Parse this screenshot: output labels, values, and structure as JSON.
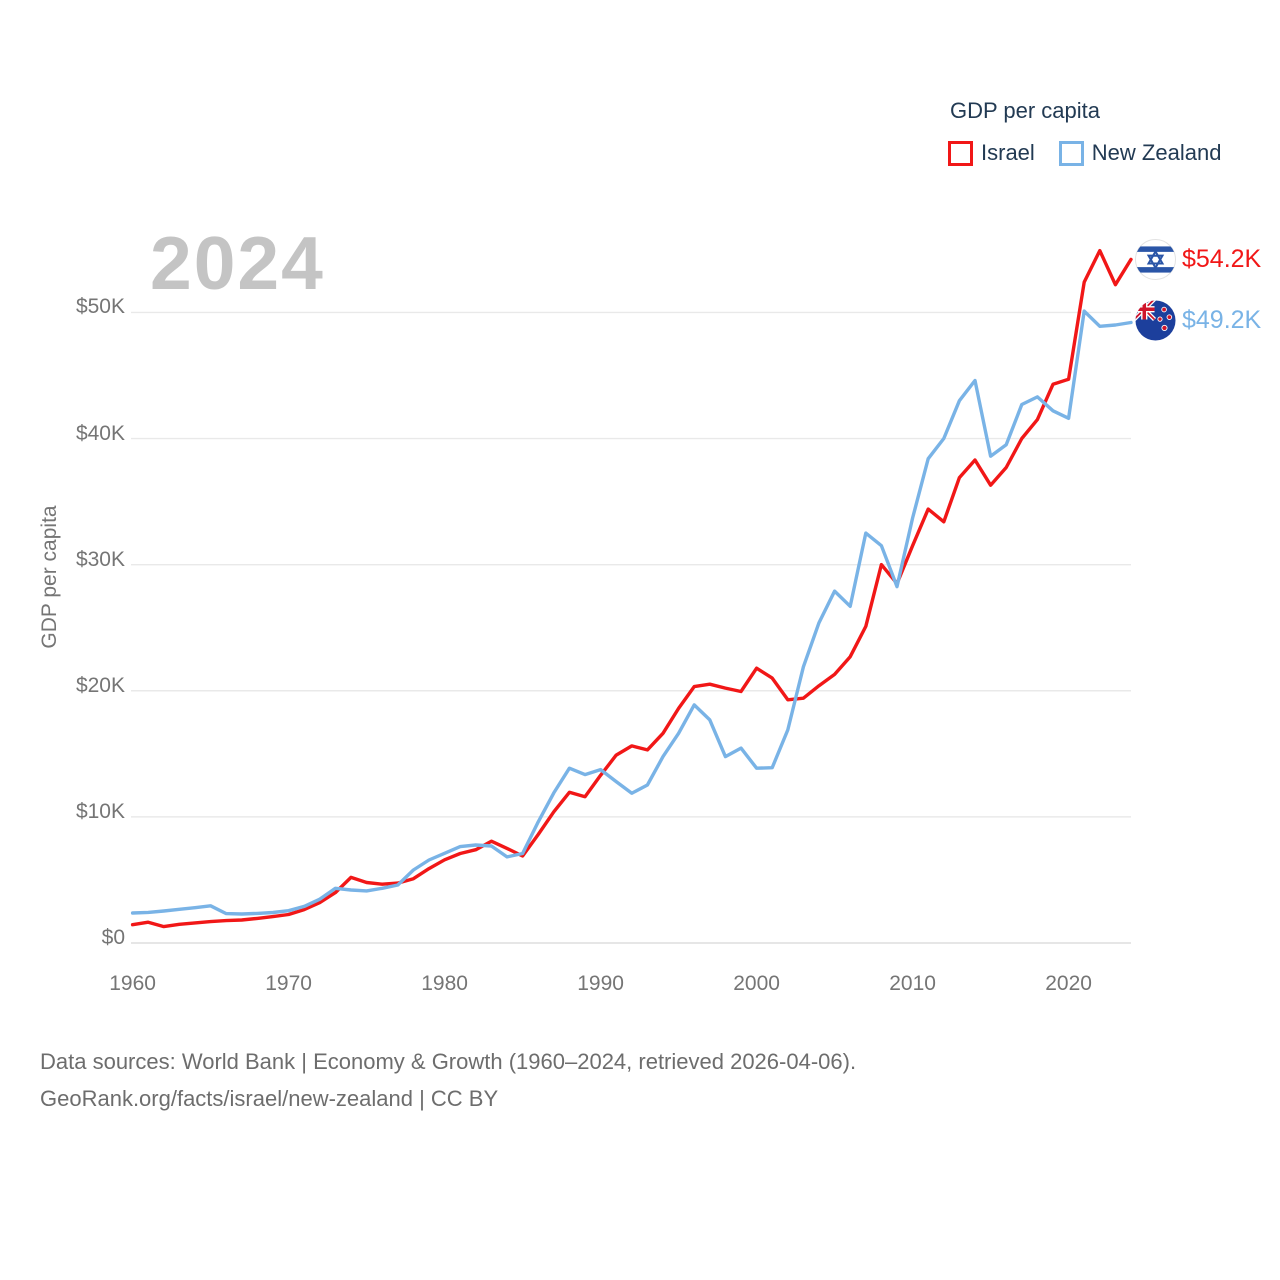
{
  "watermark": "2024",
  "y_axis_title": "GDP per capita",
  "legend": {
    "title": "GDP per capita",
    "items": [
      {
        "label": "Israel",
        "color": "#f11717"
      },
      {
        "label": "New Zealand",
        "color": "#79b3e6"
      }
    ]
  },
  "end_labels": [
    {
      "series": "Israel",
      "value": "$54.2K",
      "color": "#f11717"
    },
    {
      "series": "New Zealand",
      "value": "$49.2K",
      "color": "#79b3e6"
    }
  ],
  "footer": {
    "line1": "Data sources: World Bank | Economy & Growth (1960–2024, retrieved 2026-04-06).",
    "line2": "GeoRank.org/facts/israel/new-zealand | CC BY"
  },
  "chart_data": {
    "type": "line",
    "title": "GDP per capita",
    "ylabel": "GDP per capita",
    "unit": "USD thousands per person (current US$)",
    "x_range": [
      1960,
      2024
    ],
    "years": [
      1960,
      1961,
      1962,
      1963,
      1964,
      1965,
      1966,
      1967,
      1968,
      1969,
      1970,
      1971,
      1972,
      1973,
      1974,
      1975,
      1976,
      1977,
      1978,
      1979,
      1980,
      1981,
      1982,
      1983,
      1984,
      1985,
      1986,
      1987,
      1988,
      1989,
      1990,
      1991,
      1992,
      1993,
      1994,
      1995,
      1996,
      1997,
      1998,
      1999,
      2000,
      2001,
      2002,
      2003,
      2004,
      2005,
      2006,
      2007,
      2008,
      2009,
      2010,
      2011,
      2012,
      2013,
      2014,
      2015,
      2016,
      2017,
      2018,
      2019,
      2020,
      2021,
      2022,
      2023,
      2024
    ],
    "x_ticks": [
      1960,
      1970,
      1980,
      1990,
      2000,
      2010,
      2020
    ],
    "y_ticks": [
      {
        "value": 0,
        "label": "$0"
      },
      {
        "value": 10,
        "label": "$10K"
      },
      {
        "value": 20,
        "label": "$20K"
      },
      {
        "value": 30,
        "label": "$30K"
      },
      {
        "value": 40,
        "label": "$40K"
      },
      {
        "value": 50,
        "label": "$50K"
      }
    ],
    "ylim": [
      0,
      55
    ],
    "grid": "horizontal",
    "legend_position": "top-right",
    "series": [
      {
        "name": "Israel",
        "color": "#f11717",
        "end_label": "$54.2K",
        "values": [
          1.45,
          1.65,
          1.3,
          1.48,
          1.59,
          1.7,
          1.78,
          1.82,
          1.95,
          2.1,
          2.26,
          2.65,
          3.2,
          4.0,
          5.2,
          4.8,
          4.66,
          4.75,
          5.1,
          5.9,
          6.6,
          7.1,
          7.4,
          8.07,
          7.5,
          6.9,
          8.6,
          10.4,
          11.95,
          11.6,
          13.3,
          14.9,
          15.63,
          15.31,
          16.63,
          18.6,
          20.33,
          20.52,
          20.21,
          19.94,
          21.79,
          21.0,
          19.28,
          19.41,
          20.4,
          21.3,
          22.7,
          25.1,
          30.0,
          28.5,
          31.5,
          34.4,
          33.4,
          36.9,
          38.3,
          36.3,
          37.7,
          40.0,
          41.5,
          44.3,
          44.7,
          52.4,
          54.9,
          52.2,
          54.2
        ]
      },
      {
        "name": "New Zealand",
        "color": "#79b3e6",
        "end_label": "$49.2K",
        "values": [
          2.38,
          2.43,
          2.54,
          2.67,
          2.8,
          2.95,
          2.33,
          2.3,
          2.35,
          2.42,
          2.56,
          2.9,
          3.47,
          4.34,
          4.2,
          4.13,
          4.34,
          4.6,
          5.79,
          6.58,
          7.11,
          7.64,
          7.77,
          7.69,
          6.83,
          7.1,
          9.6,
          11.9,
          13.86,
          13.35,
          13.75,
          12.8,
          11.88,
          12.53,
          14.78,
          16.63,
          18.88,
          17.69,
          14.78,
          15.45,
          13.86,
          13.9,
          16.9,
          21.9,
          25.4,
          27.9,
          26.7,
          32.5,
          31.5,
          28.26,
          33.7,
          38.4,
          40.0,
          43.0,
          44.6,
          38.6,
          39.5,
          42.7,
          43.3,
          42.2,
          41.6,
          50.1,
          48.9,
          49.0,
          49.2
        ]
      }
    ]
  }
}
